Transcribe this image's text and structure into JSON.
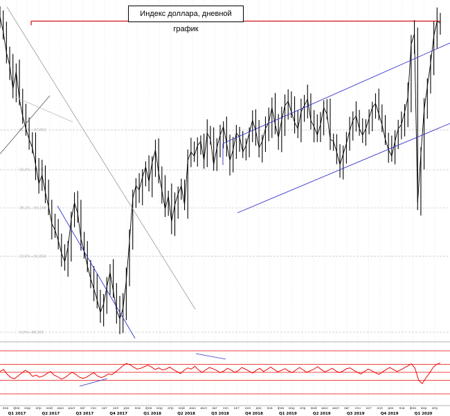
{
  "chart_data": {
    "type": "line",
    "title": "Индекс доллара, дневной график",
    "series": [
      {
        "values": [
          103.2,
          102.5,
          101.5,
          100.9,
          99.8,
          100.6,
          99.3,
          98.5,
          97.9,
          97.4,
          97.0,
          96.2,
          95.3,
          95.7,
          94.9,
          94.2,
          93.4,
          93.1,
          92.6,
          92.0,
          91.6,
          92.3,
          93.6,
          94.4,
          93.9,
          92.7,
          92.1,
          91.4,
          90.8,
          90.3,
          89.8,
          89.2,
          89.6,
          90.4,
          91.1,
          90.2,
          89.3,
          88.9,
          89.4,
          90.7,
          92.6,
          94.6,
          95.2,
          95.0,
          95.6,
          96.1,
          95.4,
          96.3,
          96.9,
          95.8,
          95.0,
          94.1,
          94.7,
          93.5,
          94.3,
          94.8,
          95.2,
          94.3,
          96.4,
          96.8,
          96.6,
          97.1,
          97.3,
          96.4,
          97.7,
          97.4,
          96.2,
          97.0,
          97.6,
          98.0,
          97.2,
          96.4,
          96.9,
          97.7,
          97.5,
          96.8,
          97.1,
          97.7,
          98.3,
          97.8,
          97.0,
          97.3,
          97.9,
          98.2,
          98.9,
          98.1,
          97.5,
          98.3,
          99.0,
          99.2,
          98.7,
          98.2,
          97.9,
          98.7,
          99.0,
          99.3,
          98.3,
          98.0,
          97.6,
          98.1,
          98.9,
          98.6,
          97.4,
          97.3,
          96.8,
          96.2,
          96.7,
          97.2,
          97.8,
          98.3,
          98.5,
          97.9,
          97.6,
          97.9,
          98.4,
          98.9,
          99.1,
          98.6,
          98.1,
          97.4,
          96.9,
          96.6,
          97.3,
          97.9,
          98.1,
          98.7,
          99.4,
          101.9,
          102.4,
          94.4,
          96.7,
          98.8,
          99.9,
          101.0,
          102.3,
          103.0,
          102.9
        ],
        "color": "#000000"
      }
    ],
    "x_range": [
      "2017-01-01",
      "2020-04-10"
    ],
    "ylim": [
      88.0,
      104.0
    ],
    "fib_levels": [
      {
        "label": "61,8%—97,842",
        "value": 97.842
      },
      {
        "label": "50,0%—95,953",
        "value": 95.953
      },
      {
        "label": "38,2%—94,148",
        "value": 94.148
      },
      {
        "label": "23,6%—91,858",
        "value": 91.858
      },
      {
        "label": "0,0%—88,261",
        "value": 88.261
      }
    ],
    "horizontal_line": {
      "value": 103.0,
      "color": "#cc0000"
    },
    "month_ticks": [
      "янв",
      "фев",
      "мар",
      "апр",
      "май",
      "июн",
      "июл",
      "авг",
      "сен",
      "окт",
      "ноя",
      "дек",
      "янв",
      "фев",
      "мар",
      "апр",
      "май",
      "июн",
      "июл",
      "авг",
      "сен",
      "окт",
      "ноя",
      "дек",
      "янв",
      "фев",
      "мар",
      "апр",
      "май",
      "июн",
      "июл",
      "авг",
      "сен",
      "окт",
      "ноя",
      "дек",
      "янв",
      "фев",
      "мар",
      "апр"
    ],
    "quarter_labels": [
      "Q1 2017",
      "Q2 2017",
      "Q3 2017",
      "Q4 2017",
      "Q1 2018",
      "Q2 2018",
      "Q3 2018",
      "Q4 2018",
      "Q1 2019",
      "Q2 2019",
      "Q3 2019",
      "Q4 2019",
      "Q1 2020"
    ],
    "rsi": {
      "ylim": [
        0,
        100
      ],
      "levels": [
        70,
        50,
        30
      ],
      "values": [
        52,
        57,
        45,
        37,
        34,
        41,
        48,
        55,
        50,
        40,
        43,
        38,
        41,
        47,
        52,
        43,
        39,
        33,
        37,
        44,
        50,
        45,
        38,
        35,
        38,
        44,
        49,
        41,
        37,
        40,
        46,
        44,
        51,
        58,
        66,
        72,
        69,
        63,
        58,
        60,
        64,
        68,
        63,
        57,
        61,
        56,
        58,
        63,
        57,
        52,
        47,
        55,
        61,
        58,
        65,
        56,
        50,
        56,
        62,
        59,
        55,
        49,
        53,
        60,
        56,
        50,
        54,
        62,
        58,
        53,
        48,
        55,
        60,
        52,
        57,
        63,
        57,
        51,
        55,
        59,
        53,
        49,
        56,
        62,
        56,
        50,
        54,
        58,
        64,
        57,
        51,
        55,
        60,
        54,
        49,
        53,
        59,
        61,
        55,
        50,
        46,
        52,
        58,
        54,
        49,
        45,
        51,
        57,
        62,
        57,
        52,
        56,
        61,
        66,
        71,
        60,
        30,
        22,
        36,
        48,
        62,
        70,
        73
      ],
      "color": "#ee0000"
    }
  }
}
